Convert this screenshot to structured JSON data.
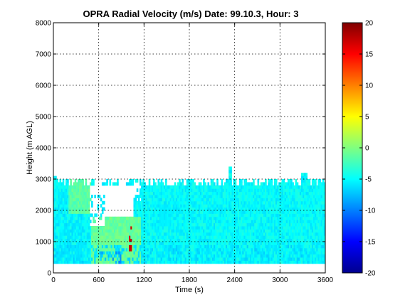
{
  "chart_data": {
    "type": "heatmap",
    "title": "OPRA Radial Velocity (m/s)  Date: 99.10.3, Hour: 3",
    "xlabel": "Time (s)",
    "ylabel": "Height (m AGL)",
    "xlim": [
      0,
      3600
    ],
    "ylim": [
      0,
      8000
    ],
    "x_ticks": [
      "0",
      "600",
      "1200",
      "1800",
      "2400",
      "3000",
      "3600"
    ],
    "y_ticks": [
      "0",
      "1000",
      "2000",
      "3000",
      "4000",
      "5000",
      "6000",
      "7000",
      "8000"
    ],
    "grid": true,
    "colormap": "jet",
    "colorbar": {
      "range": [
        -20,
        20
      ],
      "ticks": [
        "20",
        "15",
        "10",
        "5",
        "0",
        "-5",
        "-10",
        "-15",
        "-20"
      ]
    },
    "data_extent": {
      "height_min": 300,
      "height_max_typical": 3000,
      "value_typical_range": [
        -8,
        1
      ]
    }
  }
}
